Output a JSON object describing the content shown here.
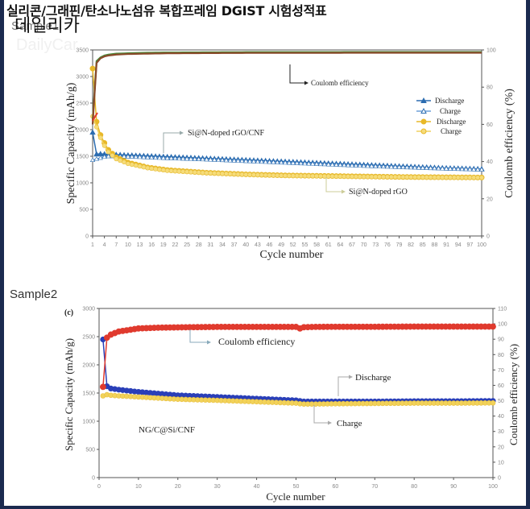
{
  "header": {
    "headline": "실리콘/그래핀/탄소나노섬유 복합프레임 DGIST 시험성적표",
    "brand": "데일리카",
    "watermark": "DailyCar"
  },
  "samples": {
    "sample1_label": "Sample1",
    "sample2_label": "Sample2"
  },
  "colors": {
    "frame": "#1b2a4f",
    "blue": "#2b6cb0",
    "yellow": "#e8b828",
    "red": "#e03a2e",
    "green": "#4a8a3a",
    "brown": "#8a4a2a",
    "navy_blue": "#2a3fb8"
  },
  "chart_data": [
    {
      "type": "line",
      "title": "Sample1",
      "xlabel": "Cycle number",
      "ylabel": "Specific Capacity (mAh/g)",
      "y2label": "Coulomb efficiency (%)",
      "xlim": [
        1,
        100
      ],
      "ylim": [
        0,
        3500
      ],
      "y2lim": [
        0,
        100
      ],
      "x_ticks": [
        1,
        4,
        7,
        10,
        13,
        16,
        19,
        22,
        25,
        28,
        31,
        34,
        37,
        40,
        43,
        46,
        49,
        52,
        55,
        58,
        61,
        64,
        67,
        70,
        73,
        76,
        79,
        82,
        85,
        88,
        91,
        94,
        97,
        100
      ],
      "y_ticks": [
        0,
        500,
        1000,
        1500,
        2000,
        2500,
        3000,
        3500
      ],
      "y2_ticks": [
        0,
        20,
        40,
        60,
        80,
        100
      ],
      "legend": [
        "Discharge",
        "Charge",
        "Discharge",
        "Charge"
      ],
      "legend_position": "upper right",
      "annotations": [
        "Coulomb efficiency",
        "Si@N-doped rGO/CNF",
        "Si@N-doped rGO"
      ],
      "grid": false,
      "x": [
        1,
        2,
        3,
        4,
        5,
        7,
        10,
        15,
        20,
        30,
        40,
        50,
        60,
        70,
        80,
        90,
        100
      ],
      "series": [
        {
          "name": "Si@N-doped rGO/CNF Discharge",
          "axis": "left",
          "values": [
            1950,
            1540,
            1545,
            1540,
            1535,
            1530,
            1520,
            1505,
            1490,
            1460,
            1430,
            1400,
            1370,
            1340,
            1310,
            1280,
            1260
          ]
        },
        {
          "name": "Si@N-doped rGO/CNF Charge",
          "axis": "left",
          "values": [
            1430,
            1450,
            1470,
            1490,
            1500,
            1500,
            1495,
            1480,
            1465,
            1440,
            1410,
            1380,
            1350,
            1320,
            1295,
            1270,
            1250
          ]
        },
        {
          "name": "Si@N-doped rGO Discharge",
          "axis": "left",
          "values": [
            3150,
            2150,
            1900,
            1750,
            1620,
            1480,
            1380,
            1290,
            1240,
            1190,
            1160,
            1140,
            1130,
            1120,
            1110,
            1105,
            1100
          ]
        },
        {
          "name": "Si@N-doped rGO Charge",
          "axis": "left",
          "values": [
            2250,
            2050,
            1850,
            1700,
            1580,
            1450,
            1360,
            1280,
            1230,
            1185,
            1155,
            1135,
            1125,
            1115,
            1108,
            1102,
            1098
          ]
        },
        {
          "name": "Coulomb efficiency (rGO/CNF)",
          "axis": "right",
          "values": [
            62,
            94,
            96,
            97,
            97.5,
            98,
            98.2,
            98.5,
            98.6,
            98.7,
            98.8,
            98.8,
            98.8,
            98.9,
            98.9,
            98.9,
            98.9
          ]
        },
        {
          "name": "Coulomb efficiency (rGO)",
          "axis": "right",
          "values": [
            60,
            93,
            95.5,
            96.5,
            97,
            97.5,
            97.8,
            98,
            98.2,
            98.3,
            98.4,
            98.4,
            98.4,
            98.5,
            98.5,
            98.5,
            98.5
          ]
        }
      ]
    },
    {
      "type": "line",
      "title": "Sample2",
      "panel_label": "(c)",
      "xlabel": "Cycle number",
      "ylabel": "Specific Capacity (mAh/g)",
      "y2label": "Coulomb efficiency (%)",
      "xlim": [
        0,
        100
      ],
      "ylim": [
        0,
        3000
      ],
      "y2lim": [
        0,
        110
      ],
      "x_ticks": [
        0,
        10,
        20,
        30,
        40,
        50,
        60,
        70,
        80,
        90,
        100
      ],
      "y_ticks": [
        0,
        500,
        1000,
        1500,
        2000,
        2500,
        3000
      ],
      "y2_ticks": [
        0,
        10,
        20,
        30,
        40,
        50,
        60,
        70,
        80,
        90,
        100,
        110
      ],
      "annotations": [
        "Coulomb efficiency",
        "Discharge",
        "Charge",
        "NG/C@Si/CNF"
      ],
      "grid": false,
      "x": [
        1,
        2,
        3,
        5,
        10,
        15,
        20,
        30,
        40,
        50,
        51,
        52,
        55,
        60,
        70,
        80,
        90,
        100
      ],
      "series": [
        {
          "name": "Discharge",
          "axis": "left",
          "values": [
            2450,
            1620,
            1580,
            1560,
            1520,
            1490,
            1460,
            1430,
            1400,
            1370,
            1360,
            1350,
            1350,
            1350,
            1350,
            1355,
            1355,
            1360
          ]
        },
        {
          "name": "Charge",
          "axis": "left",
          "values": [
            1450,
            1470,
            1460,
            1450,
            1430,
            1410,
            1390,
            1370,
            1345,
            1320,
            1310,
            1305,
            1305,
            1310,
            1315,
            1320,
            1320,
            1325
          ]
        },
        {
          "name": "Coulomb efficiency",
          "axis": "right",
          "values": [
            59,
            91,
            93,
            95,
            97,
            97.5,
            97.7,
            98,
            98,
            98,
            97,
            97.8,
            98,
            98.1,
            98.1,
            98.2,
            98.2,
            98.2
          ]
        }
      ]
    }
  ],
  "chart1_text": {
    "ylabel": "Specific Capacity (mAh/g)",
    "y2label": "Coulomb efficiency (%)",
    "xlabel": "Cycle number",
    "ann_ce": "Coulomb efficiency",
    "ann_cnf": "Si@N-doped rGO/CNF",
    "ann_rgo": "Si@N-doped rGO",
    "legend": [
      "Discharge",
      "Charge",
      "Discharge",
      "Charge"
    ]
  },
  "chart2_text": {
    "panel": "(c)",
    "ylabel": "Specific Capacity (mAh/g)",
    "y2label": "Coulomb efficiency (%)",
    "xlabel": "Cycle number",
    "ann_ce": "Coulomb efficiency",
    "ann_discharge": "Discharge",
    "ann_charge": "Charge",
    "ann_sample": "NG/C@Si/CNF"
  }
}
